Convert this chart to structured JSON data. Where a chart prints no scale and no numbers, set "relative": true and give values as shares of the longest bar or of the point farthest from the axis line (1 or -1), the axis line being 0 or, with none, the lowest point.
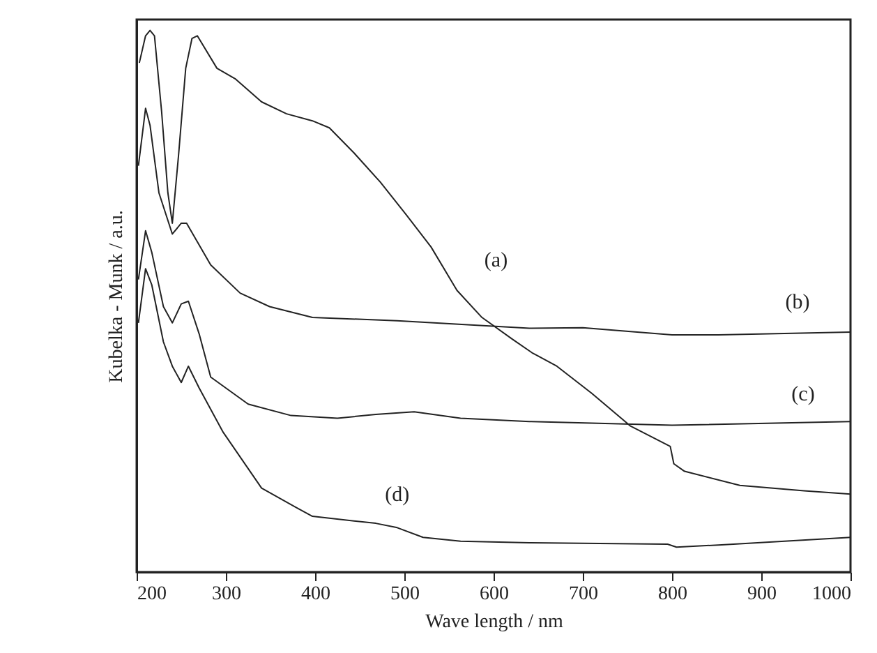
{
  "chart_data": {
    "type": "line",
    "relative": true,
    "xlabel": "Wave length / nm",
    "ylabel": "Kubelka - Munk / a.u.",
    "xlim": [
      200,
      1000
    ],
    "xticks": [
      200,
      300,
      400,
      500,
      600,
      700,
      800,
      900,
      1000
    ],
    "grid": false,
    "marker": "none",
    "line_style": "solid",
    "tick_labels": "x",
    "series": [
      {
        "name": "(a)",
        "color": "#222222",
        "x": [
          203,
          210,
          215,
          220,
          228,
          235,
          240,
          247,
          255,
          262,
          268,
          290,
          311,
          340,
          368,
          397,
          416,
          444,
          473,
          502,
          530,
          559,
          587,
          621,
          643,
          671,
          710,
          753,
          798,
          802,
          814,
          876,
          948,
          1000
        ],
        "values": [
          0.94,
          0.99,
          1.0,
          0.99,
          0.85,
          0.7,
          0.644,
          0.77,
          0.93,
          0.985,
          0.99,
          0.93,
          0.91,
          0.868,
          0.846,
          0.833,
          0.82,
          0.773,
          0.72,
          0.66,
          0.6,
          0.52,
          0.47,
          0.43,
          0.405,
          0.38,
          0.33,
          0.27,
          0.232,
          0.2,
          0.186,
          0.16,
          0.15,
          0.144
        ]
      },
      {
        "name": "(b)",
        "color": "#222222",
        "x": [
          202,
          210,
          215,
          225,
          240,
          250,
          256,
          283,
          316,
          349,
          397,
          492,
          640,
          700,
          800,
          852,
          1000
        ],
        "values": [
          0.75,
          0.856,
          0.825,
          0.7,
          0.624,
          0.644,
          0.644,
          0.567,
          0.515,
          0.49,
          0.47,
          0.464,
          0.45,
          0.451,
          0.438,
          0.438,
          0.443
        ]
      },
      {
        "name": "(c)",
        "color": "#222222",
        "x": [
          202,
          210,
          217,
          230,
          240,
          250,
          258,
          270,
          283,
          325,
          373,
          425,
          468,
          511,
          563,
          640,
          800,
          1000
        ],
        "values": [
          0.54,
          0.63,
          0.59,
          0.49,
          0.46,
          0.495,
          0.5,
          0.44,
          0.36,
          0.31,
          0.289,
          0.284,
          0.291,
          0.296,
          0.284,
          0.278,
          0.271,
          0.278
        ]
      },
      {
        "name": "(d)",
        "color": "#222222",
        "x": [
          202,
          210,
          217,
          230,
          240,
          250,
          258,
          270,
          297,
          340,
          378,
          397,
          468,
          492,
          521,
          563,
          640,
          795,
          805,
          852,
          1000
        ],
        "values": [
          0.46,
          0.56,
          0.53,
          0.425,
          0.38,
          0.35,
          0.38,
          0.34,
          0.258,
          0.155,
          0.12,
          0.103,
          0.09,
          0.082,
          0.064,
          0.057,
          0.054,
          0.0515,
          0.046,
          0.05,
          0.064
        ]
      }
    ]
  }
}
